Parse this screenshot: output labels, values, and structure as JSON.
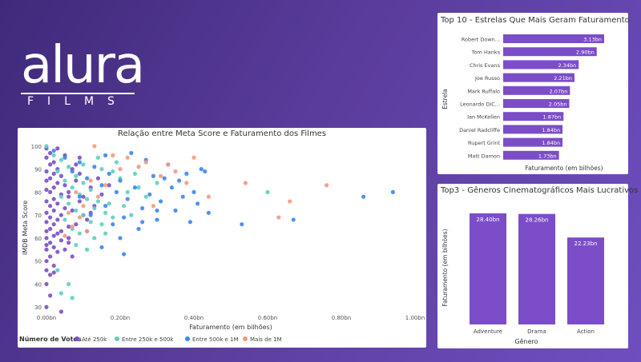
{
  "logo": {
    "main": "alura",
    "sub": "FILMS"
  },
  "colors": {
    "bar": "#7c4dc8",
    "legend_ate250k": "#7c4dc8",
    "legend_250k_500k": "#5ccfc0",
    "legend_500k_1m": "#3a86ee",
    "legend_mais_1m": "#f39a7c"
  },
  "chart_data": [
    {
      "type": "scatter",
      "title": "Relação entre Meta Score e Faturamento dos Filmes",
      "xlabel": "Faturamento (em bilhões)",
      "ylabel": "IMDB Meta Score",
      "xlim": [
        0,
        1.0
      ],
      "ylim": [
        28,
        101
      ],
      "x_ticks": [
        "0.00bn",
        "0.20bn",
        "0.40bn",
        "0.60bn",
        "0.80bn",
        "1.00bn"
      ],
      "y_ticks": [
        "30",
        "40",
        "50",
        "60",
        "70",
        "80",
        "90",
        "100"
      ],
      "legend": {
        "title": "Número de Votos",
        "items": [
          "Até 250k",
          "Entre 250k e 500k",
          "Entre 500k e 1M",
          "Mais de 1M"
        ]
      },
      "series": [
        {
          "name": "Até 250k",
          "points": [
            [
              0.0,
              99
            ],
            [
              0.01,
              97
            ],
            [
              0.0,
              95
            ],
            [
              0.02,
              93
            ],
            [
              0.01,
              92
            ],
            [
              0.03,
              90
            ],
            [
              0.0,
              89
            ],
            [
              0.02,
              88
            ],
            [
              0.04,
              87
            ],
            [
              0.01,
              86
            ],
            [
              0.0,
              85
            ],
            [
              0.03,
              84
            ],
            [
              0.05,
              83
            ],
            [
              0.02,
              82
            ],
            [
              0.0,
              81
            ],
            [
              0.01,
              80
            ],
            [
              0.04,
              79
            ],
            [
              0.06,
              78
            ],
            [
              0.02,
              77
            ],
            [
              0.0,
              76
            ],
            [
              0.03,
              75
            ],
            [
              0.01,
              74
            ],
            [
              0.05,
              73
            ],
            [
              0.02,
              72
            ],
            [
              0.0,
              71
            ],
            [
              0.04,
              70
            ],
            [
              0.01,
              69
            ],
            [
              0.03,
              68
            ],
            [
              0.0,
              67
            ],
            [
              0.02,
              66
            ],
            [
              0.06,
              65
            ],
            [
              0.01,
              64
            ],
            [
              0.0,
              63
            ],
            [
              0.03,
              62
            ],
            [
              0.02,
              61
            ],
            [
              0.0,
              60
            ],
            [
              0.04,
              59
            ],
            [
              0.01,
              58
            ],
            [
              0.0,
              57
            ],
            [
              0.02,
              56
            ],
            [
              0.0,
              55
            ],
            [
              0.03,
              54
            ],
            [
              0.01,
              52
            ],
            [
              0.0,
              50
            ],
            [
              0.02,
              48
            ],
            [
              0.0,
              46
            ],
            [
              0.01,
              44
            ],
            [
              0.0,
              40
            ],
            [
              0.0,
              30
            ],
            [
              0.04,
              28
            ],
            [
              0.07,
              90
            ],
            [
              0.08,
              85
            ],
            [
              0.06,
              80
            ],
            [
              0.09,
              76
            ],
            [
              0.07,
              72
            ],
            [
              0.1,
              70
            ],
            [
              0.08,
              66
            ],
            [
              0.11,
              63
            ],
            [
              0.06,
              60
            ],
            [
              0.09,
              88
            ],
            [
              0.12,
              82
            ],
            [
              0.1,
              78
            ],
            [
              0.05,
              55
            ],
            [
              0.07,
              52
            ],
            [
              0.13,
              74
            ],
            [
              0.11,
              68
            ],
            [
              0.14,
              86
            ],
            [
              0.08,
              92
            ],
            [
              0.15,
              79
            ],
            [
              0.12,
              71
            ],
            [
              0.17,
              83
            ],
            [
              0.05,
              96
            ],
            [
              0.03,
              99
            ],
            [
              0.09,
              95
            ],
            [
              0.02,
              45
            ],
            [
              0.01,
              35
            ],
            [
              0.04,
              63
            ],
            [
              0.06,
              58
            ]
          ]
        },
        {
          "name": "Entre 250k e 500k",
          "points": [
            [
              0.0,
              100
            ],
            [
              0.02,
              96
            ],
            [
              0.04,
              94
            ],
            [
              0.06,
              91
            ],
            [
              0.03,
              89
            ],
            [
              0.08,
              87
            ],
            [
              0.05,
              85
            ],
            [
              0.1,
              84
            ],
            [
              0.07,
              82
            ],
            [
              0.12,
              81
            ],
            [
              0.09,
              79
            ],
            [
              0.04,
              78
            ],
            [
              0.11,
              77
            ],
            [
              0.14,
              76
            ],
            [
              0.06,
              75
            ],
            [
              0.13,
              73
            ],
            [
              0.08,
              72
            ],
            [
              0.16,
              71
            ],
            [
              0.1,
              70
            ],
            [
              0.18,
              69
            ],
            [
              0.05,
              68
            ],
            [
              0.12,
              67
            ],
            [
              0.15,
              66
            ],
            [
              0.07,
              64
            ],
            [
              0.09,
              62
            ],
            [
              0.2,
              86
            ],
            [
              0.19,
              93
            ],
            [
              0.22,
              80
            ],
            [
              0.17,
              75
            ],
            [
              0.21,
              74
            ],
            [
              0.13,
              60
            ],
            [
              0.08,
              57
            ],
            [
              0.06,
              40
            ],
            [
              0.04,
              36
            ],
            [
              0.07,
              34
            ],
            [
              0.03,
              46
            ],
            [
              0.15,
              90
            ],
            [
              0.24,
              88
            ],
            [
              0.14,
              95
            ],
            [
              0.1,
              92
            ],
            [
              0.18,
              89
            ],
            [
              0.25,
              82
            ],
            [
              0.27,
              78
            ],
            [
              0.23,
              70
            ],
            [
              0.16,
              62
            ],
            [
              0.11,
              55
            ],
            [
              0.6,
              80
            ],
            [
              0.3,
              84
            ]
          ]
        },
        {
          "name": "Entre 500k e 1M",
          "points": [
            [
              0.02,
              98
            ],
            [
              0.05,
              95
            ],
            [
              0.09,
              93
            ],
            [
              0.13,
              91
            ],
            [
              0.07,
              89
            ],
            [
              0.17,
              88
            ],
            [
              0.11,
              86
            ],
            [
              0.2,
              85
            ],
            [
              0.15,
              83
            ],
            [
              0.24,
              82
            ],
            [
              0.19,
              80
            ],
            [
              0.28,
              79
            ],
            [
              0.09,
              78
            ],
            [
              0.22,
              77
            ],
            [
              0.31,
              76
            ],
            [
              0.16,
              74
            ],
            [
              0.26,
              73
            ],
            [
              0.35,
              72
            ],
            [
              0.12,
              70
            ],
            [
              0.21,
              69
            ],
            [
              0.3,
              68
            ],
            [
              0.18,
              66
            ],
            [
              0.25,
              64
            ],
            [
              0.38,
              88
            ],
            [
              0.33,
              92
            ],
            [
              0.36,
              85
            ],
            [
              0.42,
              90
            ],
            [
              0.4,
              80
            ],
            [
              0.44,
              71
            ],
            [
              0.32,
              86
            ],
            [
              0.27,
              94
            ],
            [
              0.23,
              97
            ],
            [
              0.16,
              96
            ],
            [
              0.41,
              75
            ],
            [
              0.37,
              78
            ],
            [
              0.29,
              87
            ],
            [
              0.34,
              82
            ],
            [
              0.43,
              89
            ],
            [
              0.2,
              60
            ],
            [
              0.15,
              56
            ],
            [
              0.21,
              53
            ],
            [
              0.26,
              67
            ],
            [
              0.53,
              66
            ],
            [
              0.67,
              68
            ],
            [
              0.86,
              78
            ],
            [
              0.94,
              80
            ],
            [
              0.3,
              72
            ],
            [
              0.39,
              67
            ]
          ]
        },
        {
          "name": "Mais de 1M",
          "points": [
            [
              0.13,
              100
            ],
            [
              0.18,
              96
            ],
            [
              0.22,
              95
            ],
            [
              0.27,
              93
            ],
            [
              0.33,
              92
            ],
            [
              0.25,
              91
            ],
            [
              0.35,
              89
            ],
            [
              0.31,
              87
            ],
            [
              0.4,
              95
            ],
            [
              0.38,
              84
            ],
            [
              0.2,
              90
            ],
            [
              0.16,
              83
            ],
            [
              0.12,
              85
            ],
            [
              0.08,
              80
            ],
            [
              0.1,
              74
            ],
            [
              0.14,
              78
            ],
            [
              0.09,
              69
            ],
            [
              0.07,
              65
            ],
            [
              0.05,
              61
            ],
            [
              0.44,
              78
            ],
            [
              0.54,
              84
            ],
            [
              0.63,
              69
            ],
            [
              0.66,
              76
            ],
            [
              0.76,
              83
            ],
            [
              0.29,
              74
            ],
            [
              0.11,
              63
            ],
            [
              0.06,
              71
            ]
          ]
        }
      ]
    },
    {
      "type": "bar",
      "orientation": "horizontal",
      "title": "Top 10 - Estrelas Que Mais Geram Faturamento",
      "xlabel": "Faturamento (em bilhões)",
      "ylabel": "Estrela",
      "xlim": [
        0,
        3.13
      ],
      "categories": [
        "Robert Down...",
        "Tom Hanks",
        "Chris Evans",
        "Joe Russo",
        "Mark Ruffalo",
        "Leonardo DiC...",
        "Ian McKellen",
        "Daniel Radcliffe",
        "Rupert Grint",
        "Matt Damon"
      ],
      "values": [
        3.13,
        2.9,
        2.34,
        2.21,
        2.07,
        2.05,
        1.87,
        1.84,
        1.84,
        1.73
      ],
      "labels": [
        "3.13bn",
        "2.90bn",
        "2.34bn",
        "2.21bn",
        "2.07bn",
        "2.05bn",
        "1.87bn",
        "1.84bn",
        "1.84bn",
        "1.73bn"
      ]
    },
    {
      "type": "bar",
      "orientation": "vertical",
      "title": "Top3 - Gêneros Cinematográficos Mais Lucrativos",
      "xlabel": "Gênero",
      "ylabel": "Faturamento (em bilhões)",
      "ylim": [
        0,
        28.4
      ],
      "categories": [
        "Adventure",
        "Drama",
        "Action"
      ],
      "values": [
        28.4,
        28.26,
        22.23
      ],
      "labels": [
        "28.40bn",
        "28.26bn",
        "22.23bn"
      ]
    }
  ]
}
